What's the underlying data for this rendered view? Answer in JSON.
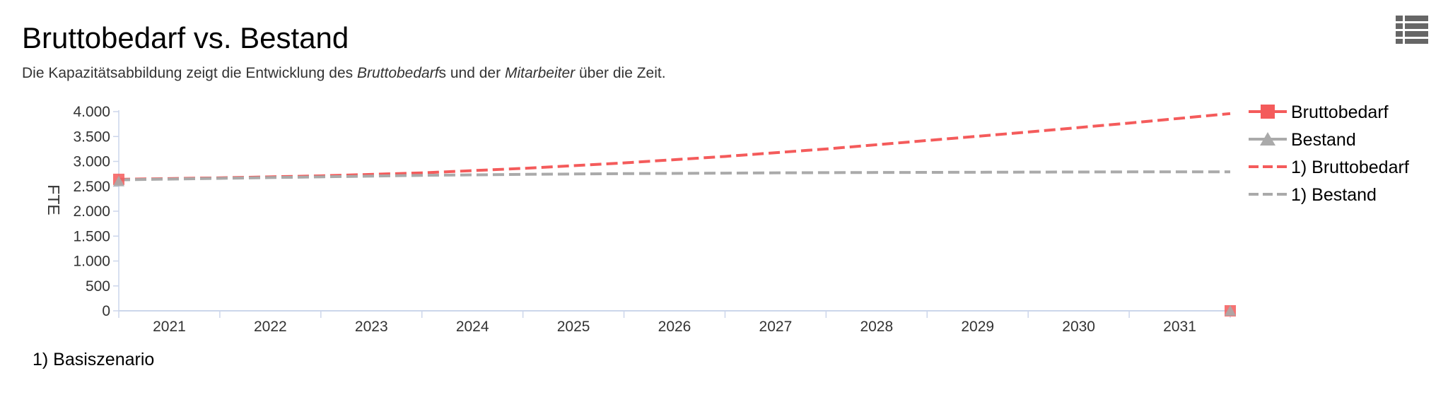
{
  "page": {
    "title": "Bruttobedarf vs. Bestand",
    "subtitle": {
      "part1": "Die Kapazitätsabbildung zeigt die Entwicklung des ",
      "em1": "Bruttobedarf",
      "part2": "s und der ",
      "em2": "Mitarbeiter",
      "part3": " über die Zeit."
    },
    "menu_icon": "menu-list-icon",
    "footnote": "1) Basiszenario"
  },
  "chart_data": {
    "type": "line",
    "ylabel": "FTE",
    "ylim": [
      0,
      4000
    ],
    "yticks": [
      0,
      500,
      1000,
      1500,
      2000,
      2500,
      3000,
      3500,
      4000
    ],
    "ytick_labels": [
      "0",
      "500",
      "1.000",
      "1.500",
      "2.000",
      "2.500",
      "3.000",
      "3.500",
      "4.000"
    ],
    "categories": [
      "2021",
      "2022",
      "2023",
      "2024",
      "2025",
      "2026",
      "2027",
      "2028",
      "2029",
      "2030",
      "2031"
    ],
    "legend_position": "right",
    "series": [
      {
        "name": "Bruttobedarf",
        "style": "solid",
        "marker": "square",
        "color": "#f45b5b",
        "points": [
          {
            "x": 0,
            "y": 2640
          },
          {
            "x": 11,
            "y": 0
          }
        ]
      },
      {
        "name": "Bestand",
        "style": "solid",
        "marker": "triangle",
        "color": "#aaaaaa",
        "points": [
          {
            "x": 0,
            "y": 2600
          },
          {
            "x": 11,
            "y": 0
          }
        ]
      },
      {
        "name": "1) Bruttobedarf",
        "style": "dashed",
        "marker": "none",
        "color": "#f45b5b",
        "points": [
          {
            "x": 0,
            "y": 2640
          },
          {
            "x": 1,
            "y": 2670
          },
          {
            "x": 2,
            "y": 2710
          },
          {
            "x": 3,
            "y": 2770
          },
          {
            "x": 4,
            "y": 2860
          },
          {
            "x": 5,
            "y": 2970
          },
          {
            "x": 6,
            "y": 3100
          },
          {
            "x": 7,
            "y": 3250
          },
          {
            "x": 8,
            "y": 3420
          },
          {
            "x": 9,
            "y": 3590
          },
          {
            "x": 10,
            "y": 3770
          },
          {
            "x": 11,
            "y": 3960
          }
        ]
      },
      {
        "name": "1) Bestand",
        "style": "dashed",
        "marker": "none",
        "color": "#aaaaaa",
        "points": [
          {
            "x": 0,
            "y": 2630
          },
          {
            "x": 1,
            "y": 2660
          },
          {
            "x": 2,
            "y": 2690
          },
          {
            "x": 3,
            "y": 2720
          },
          {
            "x": 4,
            "y": 2740
          },
          {
            "x": 5,
            "y": 2755
          },
          {
            "x": 6,
            "y": 2765
          },
          {
            "x": 7,
            "y": 2775
          },
          {
            "x": 8,
            "y": 2780
          },
          {
            "x": 9,
            "y": 2785
          },
          {
            "x": 10,
            "y": 2790
          },
          {
            "x": 11,
            "y": 2790
          }
        ]
      }
    ]
  }
}
